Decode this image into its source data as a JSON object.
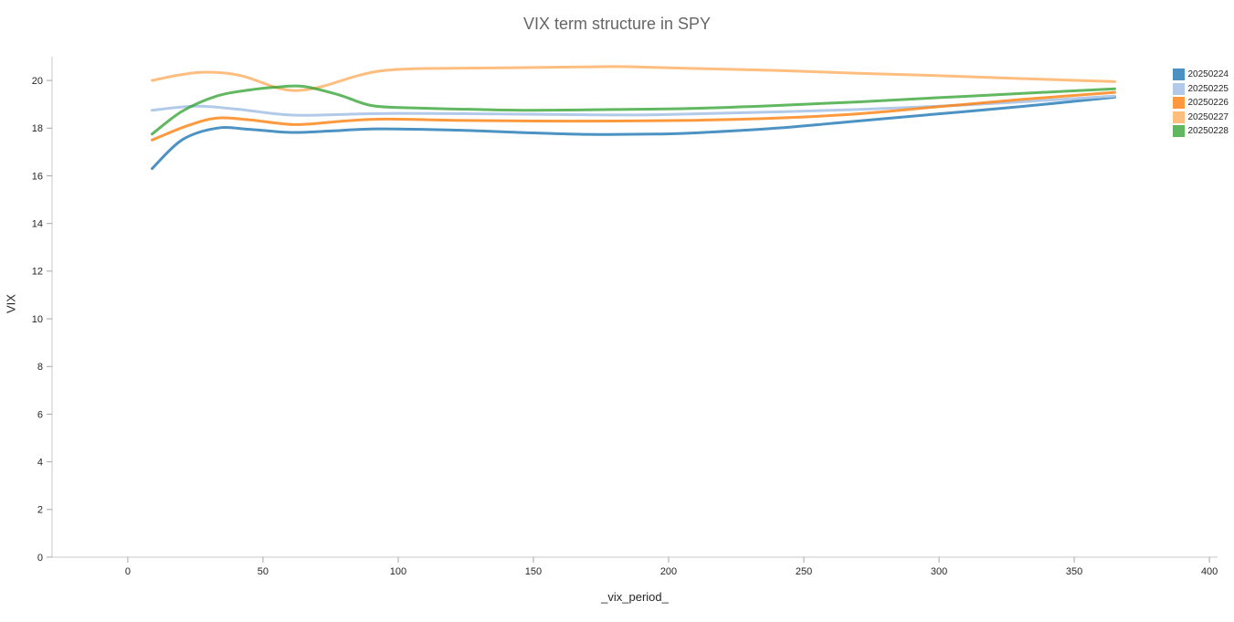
{
  "title": "VIX term structure in SPY",
  "chart_data": {
    "type": "line",
    "title": "VIX term structure in SPY",
    "xlabel": "_vix_period_",
    "ylabel": "VIX",
    "xlim": [
      -28,
      403
    ],
    "ylim": [
      0,
      21
    ],
    "x_ticks": [
      0,
      50,
      100,
      150,
      200,
      250,
      300,
      350,
      400
    ],
    "y_ticks": [
      0,
      2,
      4,
      6,
      8,
      10,
      12,
      14,
      16,
      18,
      20
    ],
    "grid": false,
    "legend_position": "top_right",
    "axis_line_color": "#c8c8c8",
    "tick_color": "#a5a5a5",
    "series": [
      {
        "name": "20250224",
        "color": "#1f77b4",
        "opacity": 0.8,
        "points": [
          [
            9,
            16.3
          ],
          [
            20,
            17.5
          ],
          [
            33,
            18.0
          ],
          [
            45,
            17.95
          ],
          [
            60,
            17.82
          ],
          [
            75,
            17.88
          ],
          [
            92,
            17.97
          ],
          [
            120,
            17.92
          ],
          [
            150,
            17.8
          ],
          [
            170,
            17.74
          ],
          [
            195,
            17.75
          ],
          [
            210,
            17.8
          ],
          [
            240,
            18.0
          ],
          [
            270,
            18.3
          ],
          [
            300,
            18.6
          ],
          [
            330,
            18.9
          ],
          [
            365,
            19.3
          ]
        ]
      },
      {
        "name": "20250225",
        "color": "#aec7e8",
        "opacity": 0.95,
        "points": [
          [
            9,
            18.75
          ],
          [
            25,
            18.92
          ],
          [
            40,
            18.8
          ],
          [
            60,
            18.55
          ],
          [
            80,
            18.58
          ],
          [
            100,
            18.62
          ],
          [
            130,
            18.6
          ],
          [
            160,
            18.57
          ],
          [
            190,
            18.55
          ],
          [
            210,
            18.6
          ],
          [
            240,
            18.68
          ],
          [
            270,
            18.78
          ],
          [
            300,
            18.92
          ],
          [
            330,
            19.1
          ],
          [
            365,
            19.35
          ]
        ]
      },
      {
        "name": "20250226",
        "color": "#ff7f0e",
        "opacity": 0.8,
        "points": [
          [
            9,
            17.5
          ],
          [
            22,
            18.1
          ],
          [
            33,
            18.42
          ],
          [
            45,
            18.35
          ],
          [
            62,
            18.15
          ],
          [
            80,
            18.3
          ],
          [
            95,
            18.38
          ],
          [
            120,
            18.33
          ],
          [
            150,
            18.3
          ],
          [
            180,
            18.3
          ],
          [
            210,
            18.33
          ],
          [
            240,
            18.42
          ],
          [
            270,
            18.6
          ],
          [
            300,
            18.9
          ],
          [
            330,
            19.2
          ],
          [
            365,
            19.5
          ]
        ]
      },
      {
        "name": "20250227",
        "color": "#ffbb78",
        "opacity": 0.95,
        "points": [
          [
            9,
            20.0
          ],
          [
            20,
            20.25
          ],
          [
            30,
            20.35
          ],
          [
            42,
            20.2
          ],
          [
            55,
            19.7
          ],
          [
            63,
            19.58
          ],
          [
            72,
            19.75
          ],
          [
            85,
            20.2
          ],
          [
            95,
            20.42
          ],
          [
            110,
            20.5
          ],
          [
            140,
            20.53
          ],
          [
            170,
            20.57
          ],
          [
            185,
            20.58
          ],
          [
            210,
            20.5
          ],
          [
            240,
            20.42
          ],
          [
            270,
            20.3
          ],
          [
            300,
            20.2
          ],
          [
            330,
            20.08
          ],
          [
            365,
            19.95
          ]
        ]
      },
      {
        "name": "20250228",
        "color": "#2ca02c",
        "opacity": 0.75,
        "points": [
          [
            9,
            17.75
          ],
          [
            20,
            18.7
          ],
          [
            33,
            19.35
          ],
          [
            45,
            19.6
          ],
          [
            55,
            19.72
          ],
          [
            65,
            19.75
          ],
          [
            78,
            19.4
          ],
          [
            90,
            18.95
          ],
          [
            105,
            18.85
          ],
          [
            130,
            18.78
          ],
          [
            150,
            18.75
          ],
          [
            180,
            18.78
          ],
          [
            210,
            18.83
          ],
          [
            240,
            18.95
          ],
          [
            270,
            19.1
          ],
          [
            300,
            19.28
          ],
          [
            330,
            19.45
          ],
          [
            365,
            19.65
          ]
        ]
      }
    ]
  }
}
